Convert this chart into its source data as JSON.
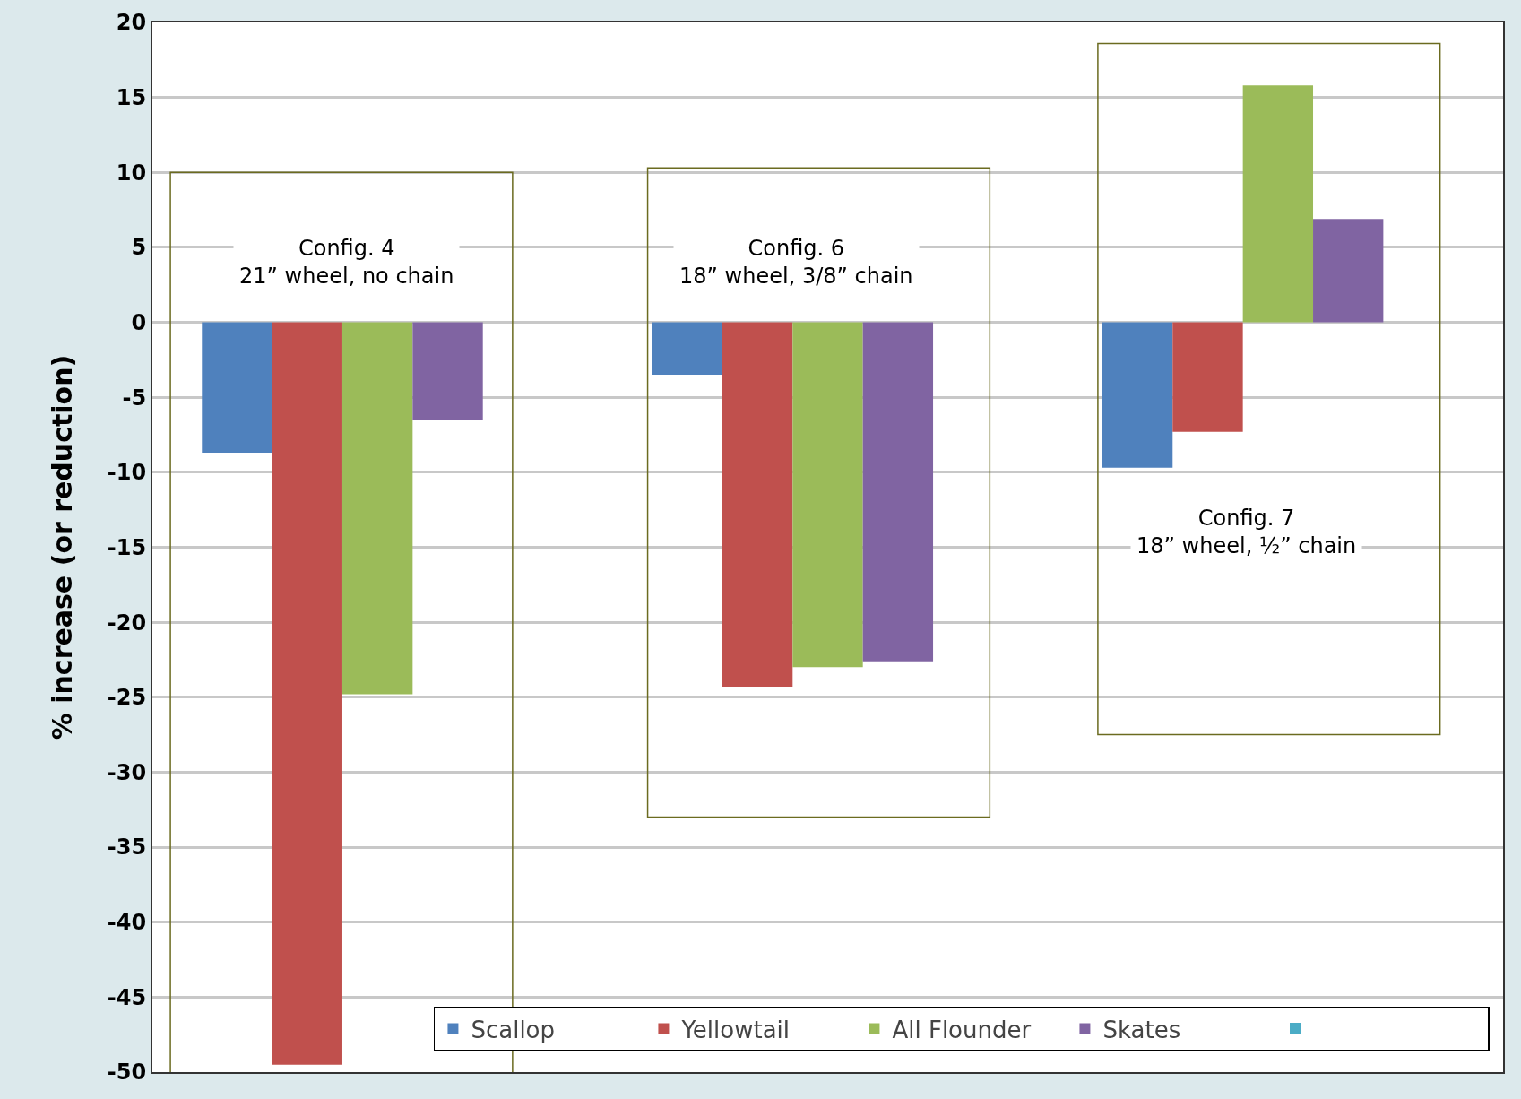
{
  "chart_data": {
    "type": "bar",
    "ylabel": "% increase (or reduction)",
    "categories": [
      null,
      null,
      null
    ],
    "series": [
      {
        "name": "Scallop",
        "color": "#4f81bd",
        "values": [
          -8.7,
          -3.5,
          -9.7
        ]
      },
      {
        "name": "Yellowtail",
        "color": "#c0504d",
        "values": [
          -49.5,
          -24.3,
          -7.3
        ]
      },
      {
        "name": "All Flounder",
        "color": "#9bbb59",
        "values": [
          -24.8,
          -23,
          15.8
        ]
      },
      {
        "name": "Skates",
        "color": "#8064a2",
        "values": [
          -6.5,
          -22.6,
          6.9
        ]
      }
    ],
    "ylim": [
      -50,
      20
    ],
    "yticks": [
      -50,
      -45,
      -40,
      -35,
      -30,
      -25,
      -20,
      -15,
      -10,
      -5,
      0,
      5,
      10,
      15,
      20
    ],
    "grid": "y",
    "legend": "bottom right",
    "tick_labels": "y",
    "annotations": [
      "Config. 4\n21” wheel, no chain",
      "Config. 6\n18” wheel, 3/8” chain",
      "Config. 7\n18” wheel, ½” chain"
    ]
  }
}
